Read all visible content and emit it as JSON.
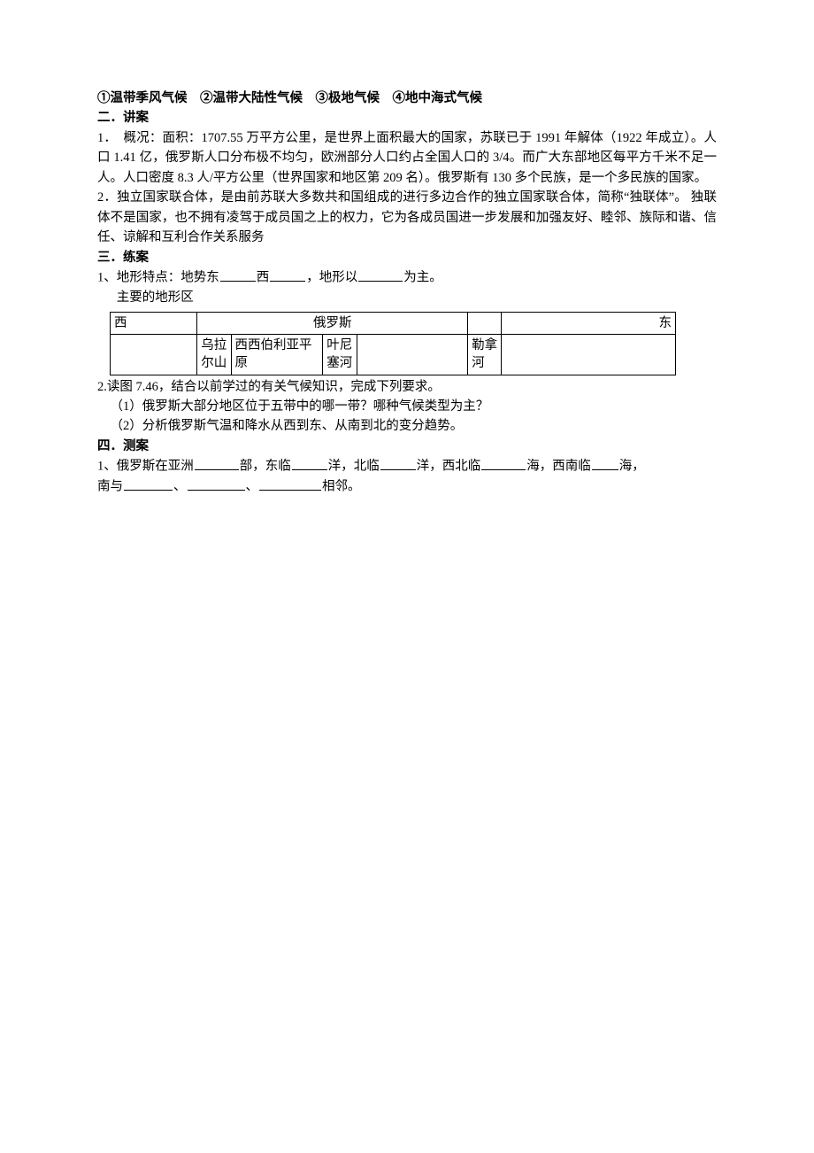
{
  "climate_line": "①温带季风气候　②温带大陆性气候　③极地气候　④地中海式气候",
  "s2_heading": "二．讲案",
  "s2_body": "1．　概况：面积：1707.55 万平方公里，是世界上面积最大的国家，苏联已于 1991 年解体（1922 年成立）。人口 1.41 亿，俄罗斯人口分布极不均匀，欧洲部分人口约占全国人口的 3/4。而广大东部地区每平方千米不足一人。人口密度 8.3 人/平方公里（世界国家和地区第 209 名）。俄罗斯有 130 多个民族，是一个多民族的国家。\n2．独立国家联合体，是由前苏联大多数共和国组成的进行多边合作的独立国家联合体，简称“独联体”。 独联体不是国家，也不拥有凌驾于成员国之上的权力，它为各成员国进一步发展和加强友好、睦邻、族际和谐、信任、谅解和互利合作关系服务",
  "s3_heading": "三．练案",
  "s3_q1_pre": "1、地形特点：地势东",
  "s3_q1_mid": "西",
  "s3_q1_mid2": "，地形以",
  "s3_q1_end": "为主。",
  "s3_sub": "主要的地形区",
  "table": {
    "r1c1": "西",
    "r1c4": "俄罗斯",
    "r1c7": "东",
    "r2c2": "乌拉尔山",
    "r2c3": "西西伯利亚平原",
    "r2c4": "叶尼塞河",
    "r2c6": "勒拿河"
  },
  "s3_q2_intro": "2.读图 7.46，结合以前学过的有关气候知识，完成下列要求。",
  "s3_q2_1": "（1）俄罗斯大部分地区位于五带中的哪一带？哪种气候类型为主？",
  "s3_q2_2": "（2）分析俄罗斯气温和降水从西到东、从南到北的变分趋势。",
  "s4_heading": "四．测案",
  "s4_q1_a": "1、俄罗斯在亚洲",
  "s4_q1_b": "部，东临",
  "s4_q1_c": "洋，北临",
  "s4_q1_d": "洋，西北临",
  "s4_q1_e": "海，西南临",
  "s4_q1_f": "海，",
  "s4_q1_g": "南与",
  "s4_q1_h": "、",
  "s4_q1_i": "、",
  "s4_q1_j": "相邻。"
}
